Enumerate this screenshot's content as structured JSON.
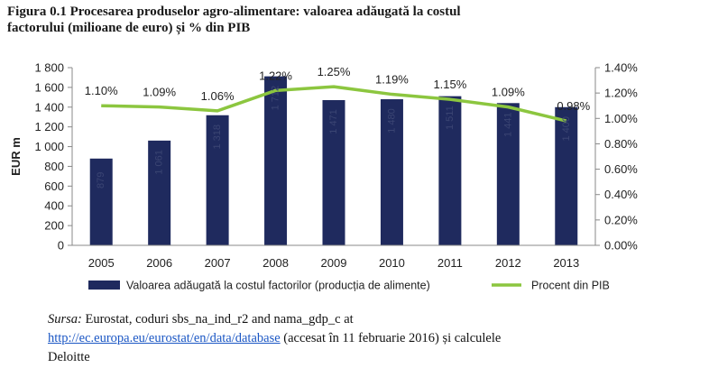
{
  "figure": {
    "title_line1": "Figura 0.1 Procesarea produselor agro-alimentare: valoarea adăugată la costul",
    "title_line2": "factorului (milioane de euro) și % din PIB"
  },
  "chart_data": {
    "type": "bar",
    "categories": [
      "2005",
      "2006",
      "2007",
      "2008",
      "2009",
      "2010",
      "2011",
      "2012",
      "2013"
    ],
    "series": [
      {
        "name": "Valoarea adăugată la costul factorilor (producția de alimente)",
        "kind": "bar",
        "axis": "left",
        "values": [
          879,
          1061,
          1318,
          1712,
          1471,
          1480,
          1511,
          1441,
          1400
        ],
        "value_labels": [
          "879",
          "1 061",
          "1 318",
          "1 712",
          "1 471",
          "1 480",
          "1 511",
          "1 441",
          "1 400"
        ],
        "color": "#1f2a5e"
      },
      {
        "name": "Procent din PIB",
        "kind": "line",
        "axis": "right",
        "values": [
          1.1,
          1.09,
          1.06,
          1.22,
          1.25,
          1.19,
          1.15,
          1.09,
          0.98
        ],
        "value_labels": [
          "1.10%",
          "1.09%",
          "1.06%",
          "1.22%",
          "1.25%",
          "1.19%",
          "1.15%",
          "1.09%",
          "0.98%"
        ],
        "color": "#8cc63f"
      }
    ],
    "ylabel": "EUR m",
    "ylim": [
      0,
      1800
    ],
    "yticks": [
      "0",
      "200",
      "400",
      "600",
      "800",
      "1 000",
      "1 200",
      "1 400",
      "1 600",
      "1 800"
    ],
    "y2lim": [
      0,
      1.4
    ],
    "y2ticks": [
      "0.00%",
      "0.20%",
      "0.40%",
      "0.60%",
      "0.80%",
      "1.00%",
      "1.20%",
      "1.40%"
    ],
    "grid": false,
    "legend_position": "bottom"
  },
  "source": {
    "label": "Sursa:",
    "text1": " Eurostat, coduri sbs_na_ind_r2 and  nama_gdp_c at",
    "link": "http://ec.europa.eu/eurostat/en/data/database",
    "text2": " (accesat în 11 februarie 2016) și calculele",
    "text3": "Deloitte"
  }
}
